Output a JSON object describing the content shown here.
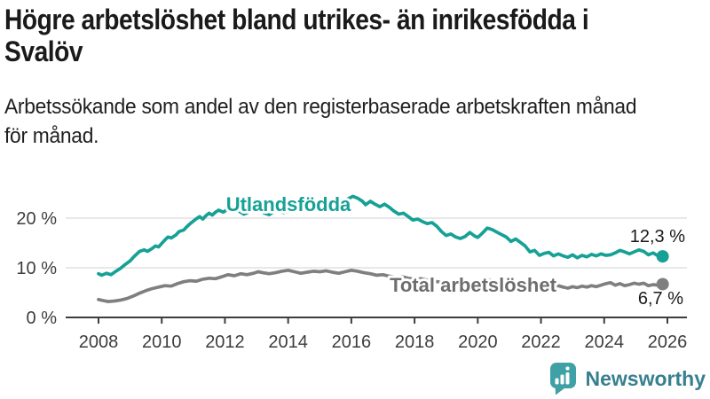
{
  "header": {
    "title_line1": "Högre arbetslöshet bland utrikes- än inrikesfödda i",
    "title_line2": "Svalöv",
    "subtitle_line1": "Arbetssökande som andel av den registerbaserade arbetskraften månad",
    "subtitle_line2": "för månad."
  },
  "chart_data": {
    "type": "line",
    "title": "Högre arbetslöshet bland utrikes- än inrikesfödda i Svalöv",
    "subtitle": "Arbetssökande som andel av den registerbaserade arbetskraften månad för månad.",
    "unit": "%",
    "grid": "horizontal-only",
    "legend_position": "inline-labels",
    "axis_color": "#3d3d3d",
    "grid_color": "#d9d9d9",
    "x_axis": {
      "range": [
        2008,
        2026.3
      ],
      "ticks": [
        2008,
        2010,
        2012,
        2014,
        2016,
        2018,
        2020,
        2022,
        2024,
        2026
      ]
    },
    "y_axis": {
      "range": [
        0,
        27
      ],
      "ticks": [
        {
          "value": 0,
          "label": "0 %"
        },
        {
          "value": 10,
          "label": "10 %"
        },
        {
          "value": 20,
          "label": "20 %"
        }
      ],
      "gridlines": [
        10,
        20
      ]
    },
    "series": [
      {
        "id": "utlandsfodda",
        "name": "Utlandsfödda",
        "color": "#16a195",
        "label_color": "#16a195",
        "end_value": 12.3,
        "end_label": "12,3 %",
        "points": [
          [
            2008.0,
            8.8
          ],
          [
            2008.1,
            8.5
          ],
          [
            2008.25,
            8.9
          ],
          [
            2008.4,
            8.6
          ],
          [
            2008.55,
            9.3
          ],
          [
            2008.7,
            9.9
          ],
          [
            2008.85,
            10.7
          ],
          [
            2009.0,
            11.4
          ],
          [
            2009.1,
            12.1
          ],
          [
            2009.2,
            12.7
          ],
          [
            2009.3,
            13.3
          ],
          [
            2009.45,
            13.6
          ],
          [
            2009.55,
            13.3
          ],
          [
            2009.7,
            13.9
          ],
          [
            2009.8,
            14.4
          ],
          [
            2009.9,
            14.2
          ],
          [
            2010.0,
            14.9
          ],
          [
            2010.1,
            15.6
          ],
          [
            2010.2,
            16.2
          ],
          [
            2010.3,
            16.0
          ],
          [
            2010.45,
            16.6
          ],
          [
            2010.55,
            17.3
          ],
          [
            2010.7,
            17.6
          ],
          [
            2010.8,
            18.3
          ],
          [
            2010.9,
            18.9
          ],
          [
            2011.0,
            19.4
          ],
          [
            2011.1,
            19.9
          ],
          [
            2011.2,
            20.3
          ],
          [
            2011.3,
            19.8
          ],
          [
            2011.4,
            20.5
          ],
          [
            2011.5,
            21.0
          ],
          [
            2011.6,
            20.6
          ],
          [
            2011.7,
            21.2
          ],
          [
            2011.8,
            21.6
          ],
          [
            2011.95,
            21.2
          ],
          [
            2012.1,
            21.9
          ],
          [
            2012.2,
            22.3
          ],
          [
            2012.35,
            21.8
          ],
          [
            2012.5,
            21.2
          ],
          [
            2012.6,
            20.8
          ],
          [
            2012.75,
            21.2
          ],
          [
            2012.9,
            21.6
          ],
          [
            2013.0,
            22.0
          ],
          [
            2013.1,
            21.6
          ],
          [
            2013.25,
            21.0
          ],
          [
            2013.4,
            20.7
          ],
          [
            2013.55,
            21.3
          ],
          [
            2013.7,
            21.6
          ],
          [
            2013.85,
            21.1
          ],
          [
            2014.0,
            21.4
          ],
          [
            2014.15,
            22.0
          ],
          [
            2014.3,
            22.4
          ],
          [
            2014.45,
            22.0
          ],
          [
            2014.6,
            21.7
          ],
          [
            2014.75,
            22.2
          ],
          [
            2014.9,
            22.6
          ],
          [
            2015.0,
            23.0
          ],
          [
            2015.15,
            22.6
          ],
          [
            2015.3,
            22.2
          ],
          [
            2015.45,
            22.6
          ],
          [
            2015.6,
            23.1
          ],
          [
            2015.75,
            23.5
          ],
          [
            2015.9,
            23.9
          ],
          [
            2016.05,
            24.4
          ],
          [
            2016.2,
            24.0
          ],
          [
            2016.35,
            23.4
          ],
          [
            2016.45,
            22.7
          ],
          [
            2016.6,
            23.4
          ],
          [
            2016.75,
            22.8
          ],
          [
            2016.9,
            22.3
          ],
          [
            2017.05,
            22.8
          ],
          [
            2017.2,
            22.2
          ],
          [
            2017.35,
            21.4
          ],
          [
            2017.5,
            20.8
          ],
          [
            2017.65,
            21.0
          ],
          [
            2017.8,
            20.3
          ],
          [
            2017.95,
            19.6
          ],
          [
            2018.1,
            19.8
          ],
          [
            2018.25,
            19.3
          ],
          [
            2018.4,
            18.9
          ],
          [
            2018.55,
            19.1
          ],
          [
            2018.7,
            18.4
          ],
          [
            2018.85,
            17.3
          ],
          [
            2019.0,
            16.5
          ],
          [
            2019.15,
            16.8
          ],
          [
            2019.3,
            16.2
          ],
          [
            2019.45,
            15.9
          ],
          [
            2019.6,
            16.3
          ],
          [
            2019.75,
            17.1
          ],
          [
            2019.9,
            16.4
          ],
          [
            2020.0,
            16.1
          ],
          [
            2020.15,
            17.0
          ],
          [
            2020.3,
            18.0
          ],
          [
            2020.45,
            17.7
          ],
          [
            2020.6,
            17.2
          ],
          [
            2020.75,
            16.7
          ],
          [
            2020.9,
            16.2
          ],
          [
            2021.05,
            15.3
          ],
          [
            2021.2,
            15.8
          ],
          [
            2021.35,
            15.1
          ],
          [
            2021.5,
            14.4
          ],
          [
            2021.65,
            13.2
          ],
          [
            2021.8,
            13.5
          ],
          [
            2021.95,
            12.5
          ],
          [
            2022.1,
            12.9
          ],
          [
            2022.25,
            13.1
          ],
          [
            2022.4,
            12.4
          ],
          [
            2022.55,
            12.8
          ],
          [
            2022.7,
            12.4
          ],
          [
            2022.85,
            12.1
          ],
          [
            2023.0,
            12.6
          ],
          [
            2023.15,
            12.0
          ],
          [
            2023.3,
            12.5
          ],
          [
            2023.45,
            12.2
          ],
          [
            2023.6,
            12.7
          ],
          [
            2023.75,
            12.4
          ],
          [
            2023.9,
            12.8
          ],
          [
            2024.05,
            12.5
          ],
          [
            2024.2,
            12.6
          ],
          [
            2024.35,
            13.0
          ],
          [
            2024.5,
            13.5
          ],
          [
            2024.65,
            13.2
          ],
          [
            2024.8,
            12.8
          ],
          [
            2024.95,
            13.2
          ],
          [
            2025.1,
            13.6
          ],
          [
            2025.25,
            13.3
          ],
          [
            2025.4,
            12.6
          ],
          [
            2025.55,
            13.0
          ],
          [
            2025.7,
            12.4
          ],
          [
            2025.85,
            12.3
          ]
        ]
      },
      {
        "id": "total",
        "name": "Total arbetslöshet",
        "color": "#7f7f7f",
        "label_color": "#6e6e6e",
        "end_value": 6.7,
        "end_label": "6,7 %",
        "points": [
          [
            2008.0,
            3.6
          ],
          [
            2008.15,
            3.4
          ],
          [
            2008.3,
            3.2
          ],
          [
            2008.5,
            3.3
          ],
          [
            2008.7,
            3.5
          ],
          [
            2008.9,
            3.8
          ],
          [
            2009.1,
            4.3
          ],
          [
            2009.3,
            4.9
          ],
          [
            2009.5,
            5.4
          ],
          [
            2009.7,
            5.8
          ],
          [
            2009.9,
            6.1
          ],
          [
            2010.1,
            6.4
          ],
          [
            2010.3,
            6.3
          ],
          [
            2010.5,
            6.8
          ],
          [
            2010.7,
            7.2
          ],
          [
            2010.9,
            7.4
          ],
          [
            2011.1,
            7.3
          ],
          [
            2011.3,
            7.7
          ],
          [
            2011.5,
            7.9
          ],
          [
            2011.7,
            7.8
          ],
          [
            2011.9,
            8.2
          ],
          [
            2012.1,
            8.6
          ],
          [
            2012.3,
            8.4
          ],
          [
            2012.5,
            8.8
          ],
          [
            2012.7,
            8.6
          ],
          [
            2012.9,
            8.9
          ],
          [
            2013.05,
            9.2
          ],
          [
            2013.2,
            9.0
          ],
          [
            2013.4,
            8.8
          ],
          [
            2013.6,
            9.0
          ],
          [
            2013.8,
            9.3
          ],
          [
            2014.0,
            9.5
          ],
          [
            2014.2,
            9.2
          ],
          [
            2014.4,
            8.9
          ],
          [
            2014.6,
            9.1
          ],
          [
            2014.8,
            9.3
          ],
          [
            2015.0,
            9.2
          ],
          [
            2015.2,
            9.4
          ],
          [
            2015.4,
            9.1
          ],
          [
            2015.6,
            8.9
          ],
          [
            2015.8,
            9.2
          ],
          [
            2016.0,
            9.5
          ],
          [
            2016.2,
            9.3
          ],
          [
            2016.4,
            9.0
          ],
          [
            2016.6,
            8.8
          ],
          [
            2016.8,
            8.5
          ],
          [
            2017.0,
            8.6
          ],
          [
            2017.2,
            8.3
          ],
          [
            2017.4,
            8.1
          ],
          [
            2017.6,
            8.2
          ],
          [
            2017.8,
            7.9
          ],
          [
            2018.0,
            7.7
          ],
          [
            2018.2,
            7.8
          ],
          [
            2018.4,
            7.5
          ],
          [
            2018.6,
            7.3
          ],
          [
            2018.8,
            7.1
          ],
          [
            2019.0,
            7.2
          ],
          [
            2019.2,
            6.9
          ],
          [
            2019.4,
            6.8
          ],
          [
            2019.6,
            7.0
          ],
          [
            2019.8,
            6.8
          ],
          [
            2020.0,
            6.9
          ],
          [
            2020.2,
            7.3
          ],
          [
            2020.4,
            7.5
          ],
          [
            2020.6,
            7.2
          ],
          [
            2020.8,
            7.0
          ],
          [
            2021.0,
            6.9
          ],
          [
            2021.2,
            6.6
          ],
          [
            2021.4,
            6.4
          ],
          [
            2021.6,
            6.2
          ],
          [
            2021.8,
            6.4
          ],
          [
            2021.95,
            6.1
          ],
          [
            2022.1,
            6.3
          ],
          [
            2022.25,
            6.0
          ],
          [
            2022.4,
            6.2
          ],
          [
            2022.55,
            6.4
          ],
          [
            2022.7,
            6.1
          ],
          [
            2022.85,
            5.9
          ],
          [
            2023.0,
            6.2
          ],
          [
            2023.15,
            6.0
          ],
          [
            2023.3,
            6.3
          ],
          [
            2023.45,
            6.1
          ],
          [
            2023.6,
            6.4
          ],
          [
            2023.75,
            6.2
          ],
          [
            2023.9,
            6.5
          ],
          [
            2024.05,
            6.8
          ],
          [
            2024.2,
            7.0
          ],
          [
            2024.35,
            6.5
          ],
          [
            2024.5,
            6.8
          ],
          [
            2024.65,
            6.4
          ],
          [
            2024.8,
            6.6
          ],
          [
            2024.95,
            6.9
          ],
          [
            2025.1,
            6.7
          ],
          [
            2025.25,
            6.9
          ],
          [
            2025.4,
            6.4
          ],
          [
            2025.55,
            6.6
          ],
          [
            2025.7,
            6.5
          ],
          [
            2025.85,
            6.7
          ]
        ]
      }
    ]
  },
  "footer": {
    "brand": "Newsworthy",
    "brand_color": "#38808f",
    "icon_color": "#3fa0a5"
  }
}
